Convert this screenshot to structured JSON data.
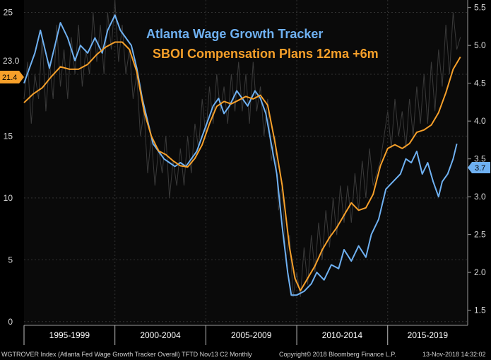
{
  "chart_data": {
    "type": "line",
    "title_lines": [
      "Atlanta Wage Growth Tracker",
      "SBOI Compensation Plans 12ma +6m"
    ],
    "x_periods": [
      "1995-1999",
      "2000-2004",
      "2005-2009",
      "2010-2014",
      "2015-2019"
    ],
    "xlim": [
      1995.0,
      2019.4
    ],
    "left_axis": {
      "ticks": [
        "0",
        "5",
        "10",
        "15",
        "20",
        "25"
      ],
      "range": [
        -0.3,
        26.0
      ]
    },
    "right_axis": {
      "ticks": [
        "1.5",
        "2.0",
        "2.5",
        "3.0",
        "3.5",
        "4.0",
        "4.5",
        "5.0",
        "5.5"
      ],
      "range": [
        1.3,
        5.6
      ]
    },
    "left_labels": {
      "raw_last": "23.0",
      "smoothed_last": "21.4"
    },
    "right_labels": {
      "wage_last": "3.7"
    },
    "colors": {
      "wage": "#6fb1f2",
      "sboi": "#f7a02a",
      "raw": "#3a3a3a",
      "grid": "#333333"
    },
    "series": [
      {
        "name": "Atlanta Wage Growth Tracker",
        "axis": "right",
        "points": [
          [
            1995.0,
            4.5
          ],
          [
            1995.3,
            4.7
          ],
          [
            1995.6,
            4.9
          ],
          [
            1995.9,
            5.2
          ],
          [
            1996.1,
            5.0
          ],
          [
            1996.4,
            4.7
          ],
          [
            1996.7,
            5.0
          ],
          [
            1997.0,
            5.3
          ],
          [
            1997.4,
            5.1
          ],
          [
            1997.8,
            4.8
          ],
          [
            1998.1,
            5.0
          ],
          [
            1998.5,
            4.9
          ],
          [
            1998.9,
            5.1
          ],
          [
            1999.3,
            4.9
          ],
          [
            1999.6,
            5.2
          ],
          [
            2000.0,
            5.4
          ],
          [
            2000.3,
            5.2
          ],
          [
            2000.6,
            5.1
          ],
          [
            2000.9,
            5.0
          ],
          [
            2001.2,
            4.7
          ],
          [
            2001.5,
            4.3
          ],
          [
            2001.8,
            4.0
          ],
          [
            2002.1,
            3.7
          ],
          [
            2002.4,
            3.6
          ],
          [
            2002.7,
            3.5
          ],
          [
            2003.0,
            3.45
          ],
          [
            2003.3,
            3.4
          ],
          [
            2003.6,
            3.45
          ],
          [
            2003.9,
            3.4
          ],
          [
            2004.2,
            3.5
          ],
          [
            2004.5,
            3.6
          ],
          [
            2004.8,
            3.8
          ],
          [
            2005.1,
            4.0
          ],
          [
            2005.4,
            4.2
          ],
          [
            2005.7,
            4.3
          ],
          [
            2006.0,
            4.1
          ],
          [
            2006.3,
            4.2
          ],
          [
            2006.7,
            4.4
          ],
          [
            2007.0,
            4.3
          ],
          [
            2007.3,
            4.2
          ],
          [
            2007.7,
            4.4
          ],
          [
            2008.0,
            4.3
          ],
          [
            2008.3,
            4.1
          ],
          [
            2008.6,
            3.7
          ],
          [
            2008.9,
            3.3
          ],
          [
            2009.2,
            2.6
          ],
          [
            2009.5,
            2.0
          ],
          [
            2009.7,
            1.7
          ],
          [
            2010.0,
            1.7
          ],
          [
            2010.4,
            1.75
          ],
          [
            2010.8,
            1.85
          ],
          [
            2011.1,
            2.0
          ],
          [
            2011.5,
            1.9
          ],
          [
            2011.9,
            2.1
          ],
          [
            2012.3,
            2.05
          ],
          [
            2012.6,
            2.3
          ],
          [
            2013.0,
            2.15
          ],
          [
            2013.4,
            2.35
          ],
          [
            2013.8,
            2.2
          ],
          [
            2014.1,
            2.5
          ],
          [
            2014.5,
            2.7
          ],
          [
            2014.9,
            3.1
          ],
          [
            2015.3,
            3.2
          ],
          [
            2015.7,
            3.3
          ],
          [
            2016.0,
            3.5
          ],
          [
            2016.3,
            3.45
          ],
          [
            2016.6,
            3.6
          ],
          [
            2016.9,
            3.3
          ],
          [
            2017.2,
            3.45
          ],
          [
            2017.5,
            3.2
          ],
          [
            2017.8,
            3.0
          ],
          [
            2018.0,
            3.2
          ],
          [
            2018.3,
            3.3
          ],
          [
            2018.6,
            3.5
          ],
          [
            2018.8,
            3.7
          ]
        ]
      },
      {
        "name": "SBOI Compensation Plans 12ma +6m",
        "axis": "left",
        "points": [
          [
            1995.0,
            17.7
          ],
          [
            1995.5,
            18.4
          ],
          [
            1996.0,
            18.9
          ],
          [
            1996.5,
            19.8
          ],
          [
            1997.0,
            20.6
          ],
          [
            1997.5,
            20.4
          ],
          [
            1998.0,
            20.4
          ],
          [
            1998.5,
            20.8
          ],
          [
            1999.0,
            21.6
          ],
          [
            1999.5,
            22.2
          ],
          [
            2000.0,
            22.6
          ],
          [
            2000.4,
            22.6
          ],
          [
            2000.8,
            22.0
          ],
          [
            2001.2,
            20.2
          ],
          [
            2001.6,
            17.0
          ],
          [
            2002.0,
            15.0
          ],
          [
            2002.4,
            13.8
          ],
          [
            2002.8,
            13.5
          ],
          [
            2003.2,
            13.0
          ],
          [
            2003.6,
            12.6
          ],
          [
            2004.0,
            12.5
          ],
          [
            2004.4,
            13.2
          ],
          [
            2004.8,
            14.3
          ],
          [
            2005.2,
            16.0
          ],
          [
            2005.6,
            17.4
          ],
          [
            2006.0,
            17.8
          ],
          [
            2006.4,
            17.6
          ],
          [
            2006.8,
            17.9
          ],
          [
            2007.2,
            18.2
          ],
          [
            2007.6,
            18.0
          ],
          [
            2008.0,
            18.3
          ],
          [
            2008.4,
            17.5
          ],
          [
            2008.8,
            14.5
          ],
          [
            2009.2,
            11.0
          ],
          [
            2009.6,
            6.0
          ],
          [
            2009.9,
            3.5
          ],
          [
            2010.2,
            2.5
          ],
          [
            2010.6,
            3.5
          ],
          [
            2011.0,
            4.5
          ],
          [
            2011.4,
            5.8
          ],
          [
            2011.8,
            6.8
          ],
          [
            2012.2,
            7.6
          ],
          [
            2012.6,
            8.6
          ],
          [
            2013.0,
            9.6
          ],
          [
            2013.4,
            9.0
          ],
          [
            2013.8,
            9.2
          ],
          [
            2014.2,
            10.3
          ],
          [
            2014.6,
            12.6
          ],
          [
            2015.0,
            14.0
          ],
          [
            2015.4,
            14.3
          ],
          [
            2015.8,
            14.0
          ],
          [
            2016.2,
            14.4
          ],
          [
            2016.6,
            15.3
          ],
          [
            2017.0,
            15.5
          ],
          [
            2017.4,
            15.9
          ],
          [
            2017.8,
            16.9
          ],
          [
            2018.2,
            18.5
          ],
          [
            2018.6,
            20.4
          ],
          [
            2019.0,
            21.4
          ]
        ]
      },
      {
        "name": "raw",
        "axis": "left",
        "points": [
          [
            1995.0,
            18
          ],
          [
            1995.2,
            21
          ],
          [
            1995.4,
            16
          ],
          [
            1995.6,
            20
          ],
          [
            1995.8,
            18
          ],
          [
            1996.0,
            23
          ],
          [
            1996.2,
            17
          ],
          [
            1996.4,
            21
          ],
          [
            1996.6,
            18
          ],
          [
            1996.8,
            24
          ],
          [
            1997.0,
            19
          ],
          [
            1997.2,
            22
          ],
          [
            1997.4,
            18
          ],
          [
            1997.6,
            23
          ],
          [
            1997.8,
            20
          ],
          [
            1998.0,
            24
          ],
          [
            1998.2,
            19
          ],
          [
            1998.4,
            22
          ],
          [
            1998.6,
            20
          ],
          [
            1998.8,
            25
          ],
          [
            1999.0,
            21
          ],
          [
            1999.2,
            24
          ],
          [
            1999.4,
            20
          ],
          [
            1999.6,
            25
          ],
          [
            1999.8,
            22
          ],
          [
            2000.0,
            26
          ],
          [
            2000.2,
            21
          ],
          [
            2000.4,
            24
          ],
          [
            2000.6,
            20
          ],
          [
            2000.8,
            22
          ],
          [
            2001.0,
            18
          ],
          [
            2001.2,
            20
          ],
          [
            2001.4,
            15
          ],
          [
            2001.6,
            17
          ],
          [
            2001.8,
            12
          ],
          [
            2002.0,
            15
          ],
          [
            2002.2,
            11
          ],
          [
            2002.4,
            14
          ],
          [
            2002.6,
            12
          ],
          [
            2002.8,
            15
          ],
          [
            2003.0,
            10
          ],
          [
            2003.2,
            13
          ],
          [
            2003.4,
            11
          ],
          [
            2003.6,
            14
          ],
          [
            2003.8,
            11
          ],
          [
            2004.0,
            15
          ],
          [
            2004.2,
            12
          ],
          [
            2004.4,
            16
          ],
          [
            2004.6,
            14
          ],
          [
            2004.8,
            18
          ],
          [
            2005.0,
            15
          ],
          [
            2005.2,
            19
          ],
          [
            2005.4,
            16
          ],
          [
            2005.6,
            20
          ],
          [
            2005.8,
            17
          ],
          [
            2006.0,
            19
          ],
          [
            2006.2,
            16
          ],
          [
            2006.4,
            20
          ],
          [
            2006.6,
            17
          ],
          [
            2006.8,
            21
          ],
          [
            2007.0,
            17
          ],
          [
            2007.2,
            20
          ],
          [
            2007.4,
            16
          ],
          [
            2007.6,
            21
          ],
          [
            2007.8,
            17
          ],
          [
            2008.0,
            19
          ],
          [
            2008.2,
            15
          ],
          [
            2008.4,
            18
          ],
          [
            2008.6,
            13
          ],
          [
            2008.8,
            15
          ],
          [
            2009.0,
            9
          ],
          [
            2009.2,
            11
          ],
          [
            2009.4,
            5
          ],
          [
            2009.6,
            7
          ],
          [
            2009.8,
            2
          ],
          [
            2010.0,
            4
          ],
          [
            2010.2,
            2
          ],
          [
            2010.4,
            6
          ],
          [
            2010.6,
            3
          ],
          [
            2010.8,
            7
          ],
          [
            2011.0,
            4
          ],
          [
            2011.2,
            8
          ],
          [
            2011.4,
            5
          ],
          [
            2011.6,
            9
          ],
          [
            2011.8,
            6
          ],
          [
            2012.0,
            10
          ],
          [
            2012.2,
            7
          ],
          [
            2012.4,
            11
          ],
          [
            2012.6,
            8
          ],
          [
            2012.8,
            11
          ],
          [
            2013.0,
            8
          ],
          [
            2013.2,
            12
          ],
          [
            2013.4,
            9
          ],
          [
            2013.6,
            13
          ],
          [
            2013.8,
            10
          ],
          [
            2014.0,
            14
          ],
          [
            2014.2,
            11
          ],
          [
            2014.6,
            13
          ],
          [
            2015.0,
            17
          ],
          [
            2015.2,
            14
          ],
          [
            2015.4,
            18
          ],
          [
            2015.6,
            15
          ],
          [
            2015.8,
            17
          ],
          [
            2016.0,
            14
          ],
          [
            2016.2,
            18
          ],
          [
            2016.4,
            15
          ],
          [
            2016.6,
            19
          ],
          [
            2016.8,
            16
          ],
          [
            2017.0,
            20
          ],
          [
            2017.2,
            16
          ],
          [
            2017.4,
            21
          ],
          [
            2017.6,
            17
          ],
          [
            2017.8,
            22
          ],
          [
            2018.0,
            19
          ],
          [
            2018.2,
            24
          ],
          [
            2018.4,
            20
          ],
          [
            2018.6,
            25
          ],
          [
            2018.8,
            22
          ],
          [
            2019.0,
            23
          ]
        ]
      }
    ]
  },
  "footer": {
    "left": "WGTROVER Index (Atlanta Fed Wage Growth Tracker Overall) TFTD Nov13 C2  Monthly",
    "center": "Copyright© 2018 Bloomberg Finance L.P.",
    "right": "13-Nov-2018 14:32:02"
  }
}
